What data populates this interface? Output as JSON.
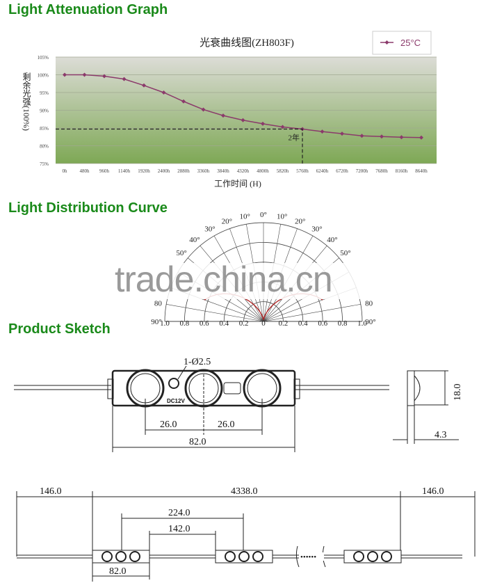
{
  "sections": {
    "attenuation": "Light Attenuation Graph",
    "distribution": "Light Distribution Curve",
    "sketch": "Product Sketch"
  },
  "chart_data": [
    {
      "type": "line",
      "title": "光衰曲线图(ZH803F)",
      "xlabel": "工作时间 (H)",
      "ylabel": "剩余光强(100%)",
      "categories": [
        "0h",
        "480h",
        "960h",
        "1140h",
        "1920h",
        "2400h",
        "2880h",
        "3360h",
        "3840h",
        "4320h",
        "4800h",
        "5820h",
        "5760h",
        "6240h",
        "6720h",
        "7200h",
        "7680h",
        "8160h",
        "8640h"
      ],
      "series": [
        {
          "name": "25°C",
          "color": "#8b3a6b",
          "values": [
            100,
            100,
            99.6,
            98.8,
            97,
            95,
            92.5,
            90.2,
            88.5,
            87.2,
            86.2,
            85.3,
            84.7,
            84,
            83.4,
            82.8,
            82.6,
            82.4,
            82.3
          ]
        }
      ],
      "yticks": [
        "75%",
        "80%",
        "85%",
        "90%",
        "95%",
        "100%",
        "105%"
      ],
      "ylim": [
        75,
        105
      ],
      "grid": true,
      "legend": "top-right",
      "annotation": {
        "text": "2年",
        "x": "5760h",
        "y": 84.7
      }
    },
    {
      "type": "polar",
      "angle_labels_left": [
        "0°",
        "10°",
        "20°",
        "30°",
        "40°",
        "50°",
        "80",
        "90°"
      ],
      "angle_labels_right": [
        "10°",
        "20°",
        "30°",
        "40°",
        "50°",
        "80",
        "90°"
      ],
      "radial_labels": [
        "1.0",
        "0.8",
        "0.6",
        "0.4",
        "0.2",
        "0",
        "0.2",
        "0.4",
        "0.6",
        "0.8",
        "1.0"
      ],
      "curve_color": "#b02020"
    }
  ],
  "watermark": "trade.china.cn",
  "sketch": {
    "hole": "1-Ø2.5",
    "voltage": "DC12V",
    "pitch_left": "26.0",
    "pitch_right": "26.0",
    "length": "82.0",
    "height": "18.0",
    "depth": "4.3",
    "lead_left": "146.0",
    "total": "4338.0",
    "lead_right": "146.0",
    "spacing_a": "224.0",
    "spacing_b": "142.0",
    "module_len": "82.0",
    "ellipsis": "••••••"
  }
}
